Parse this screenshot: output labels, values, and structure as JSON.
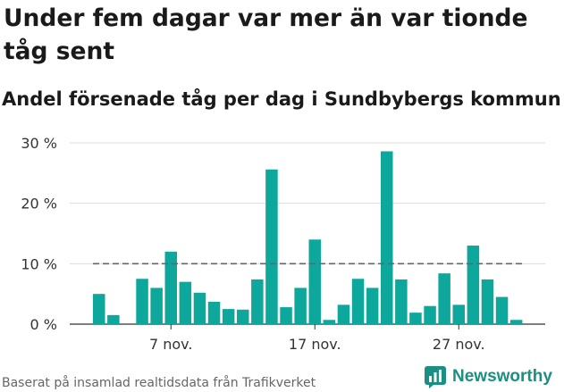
{
  "chart_data": {
    "type": "bar",
    "title": "Under fem dagar var mer än var tionde tåg sent",
    "subtitle": "Andel försenade tåg per dag i Sundbybergs kommun",
    "values": [
      5.0,
      1.5,
      null,
      7.5,
      6.0,
      12.0,
      7.0,
      5.2,
      3.7,
      2.5,
      2.4,
      7.4,
      25.6,
      2.8,
      6.0,
      14.0,
      0.7,
      3.2,
      7.5,
      6.0,
      28.6,
      7.4,
      1.9,
      3.0,
      8.4,
      3.2,
      13.0,
      7.4,
      4.5,
      0.7
    ],
    "ylim": [
      0,
      30
    ],
    "yticks": [
      0,
      10,
      20,
      30
    ],
    "ytick_labels": [
      "0 %",
      "10 %",
      "20 %",
      "30 %"
    ],
    "xticks": [
      {
        "index": 5,
        "label": "7 nov."
      },
      {
        "index": 15,
        "label": "17 nov."
      },
      {
        "index": 25,
        "label": "27 nov."
      }
    ],
    "reference_line": 10,
    "bar_color": "#0ea79b",
    "reference_color": "#666666",
    "grid": true
  },
  "footer": {
    "source": "Baserat på insamlad realtidsdata från Trafikverket",
    "brand": "Newsworthy"
  },
  "colors": {
    "brand": "#1a8f82"
  }
}
